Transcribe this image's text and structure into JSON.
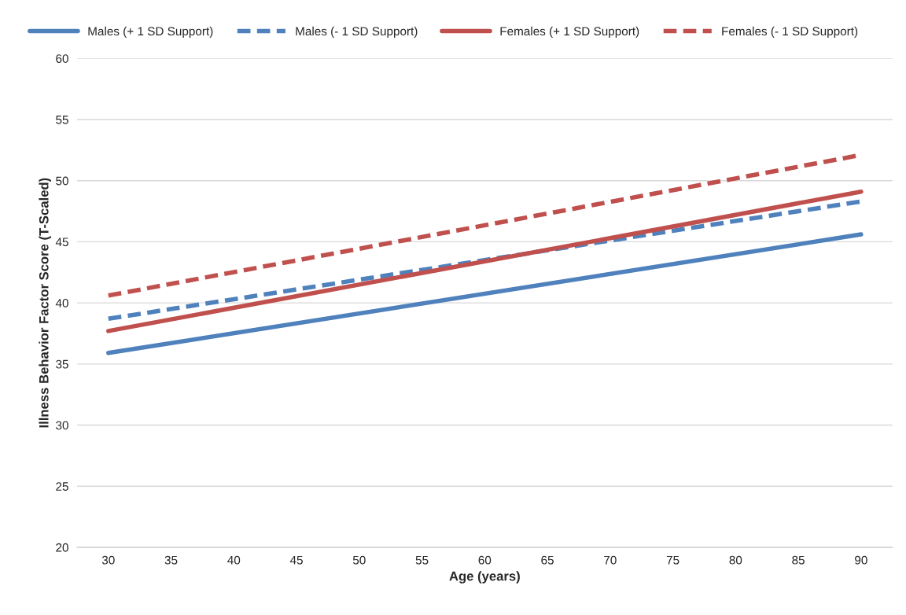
{
  "chart_data": {
    "type": "line",
    "xlabel": "Age (years)",
    "ylabel": "Illness Behavior Factor Score (T-Scaled)",
    "x": [
      30,
      90
    ],
    "xlim": [
      27.5,
      92.5
    ],
    "xticks": [
      30,
      35,
      40,
      45,
      50,
      55,
      60,
      65,
      70,
      75,
      80,
      85,
      90
    ],
    "ylim": [
      20,
      60
    ],
    "yticks": [
      20,
      25,
      30,
      35,
      40,
      45,
      50,
      55,
      60
    ],
    "grid": "y",
    "legend": "top",
    "marker": "none",
    "series": [
      {
        "name": "Males (+ 1 SD Support)",
        "color": "#4f81bd",
        "values": [
          35.9,
          45.6
        ],
        "line_style": "solid"
      },
      {
        "name": "Males (- 1 SD Support)",
        "color": "#4f81bd",
        "values": [
          38.7,
          48.3
        ],
        "line_style": "dashed"
      },
      {
        "name": "Females (+ 1 SD Support)",
        "color": "#c0504d",
        "values": [
          37.7,
          49.1
        ],
        "line_style": "solid"
      },
      {
        "name": "Females (- 1 SD Support)",
        "color": "#c0504d",
        "values": [
          40.6,
          52.1
        ],
        "line_style": "dashed"
      }
    ]
  }
}
